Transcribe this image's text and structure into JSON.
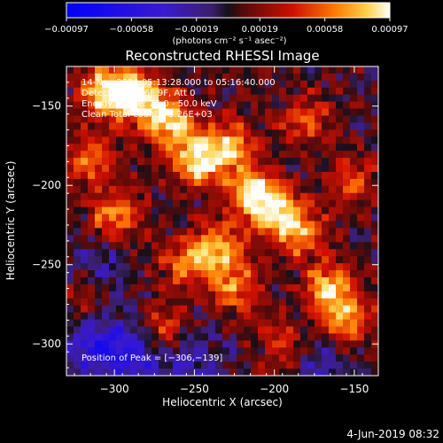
{
  "chart_data": {
    "type": "heatmap",
    "title": "Reconstructed RHESSI Image",
    "xlabel": "Heliocentric X (arcsec)",
    "ylabel": "Heliocentric Y (arcsec)",
    "xlim": [
      -330,
      -135
    ],
    "ylim": [
      -320,
      -125
    ],
    "x_ticks": [
      -300,
      -250,
      -200,
      -150
    ],
    "x_tick_labels": [
      "−300",
      "−250",
      "−200",
      "−150"
    ],
    "y_ticks": [
      -150,
      -200,
      -250,
      -300
    ],
    "y_tick_labels": [
      "−150",
      "−200",
      "−250",
      "−300"
    ],
    "colorbar": {
      "min": -0.00097,
      "max": 0.00097,
      "tick_values": [
        -0.00097,
        -0.00058,
        -0.00019,
        0.00019,
        0.00058,
        0.00097
      ],
      "tick_labels": [
        "−0.00097",
        "−0.00058",
        "−0.00019",
        "0.00019",
        "0.00058",
        "0.00097"
      ],
      "units_label": "(photons cm⁻² s⁻¹ asec⁻²)"
    },
    "annotations": [
      "14-Nov-2014 05:13:28.000 to 05:16:40.000",
      "Detectors: 3F 6F 9F, Att 0",
      "Energy Range: 25.0 - 50.0 keV",
      "Clean     Total counts: 3.26E+03"
    ],
    "peak_label": "Position of Peak = [−306,−139]",
    "peak": {
      "x": -306,
      "y": -139
    },
    "hotspots": [
      {
        "x": -305,
        "y": -140,
        "v": 0.00097
      },
      {
        "x": -285,
        "y": -145,
        "v": 0.0009
      },
      {
        "x": -265,
        "y": -160,
        "v": 0.00082
      },
      {
        "x": -248,
        "y": -185,
        "v": 0.00088
      },
      {
        "x": -228,
        "y": -175,
        "v": 0.00075
      },
      {
        "x": -215,
        "y": -205,
        "v": 0.00085
      },
      {
        "x": -200,
        "y": -215,
        "v": 0.00075
      },
      {
        "x": -185,
        "y": -230,
        "v": 0.0007
      },
      {
        "x": -165,
        "y": -265,
        "v": 0.00078
      },
      {
        "x": -155,
        "y": -285,
        "v": 0.00065
      },
      {
        "x": -235,
        "y": -240,
        "v": 0.0007
      },
      {
        "x": -255,
        "y": -250,
        "v": 0.0006
      },
      {
        "x": -225,
        "y": -265,
        "v": 0.00058
      },
      {
        "x": -270,
        "y": -290,
        "v": 0.00052
      },
      {
        "x": -300,
        "y": -220,
        "v": 0.00065
      },
      {
        "x": -315,
        "y": -185,
        "v": 0.0006
      },
      {
        "x": -180,
        "y": -160,
        "v": 0.0005
      },
      {
        "x": -150,
        "y": -200,
        "v": 0.00045
      },
      {
        "x": -195,
        "y": -300,
        "v": 0.0004
      },
      {
        "x": -320,
        "y": -270,
        "v": 0.0003
      }
    ],
    "coldspots": [
      {
        "x": -290,
        "y": -305,
        "v": -0.00058
      },
      {
        "x": -315,
        "y": -300,
        "v": -0.00045
      },
      {
        "x": -250,
        "y": -310,
        "v": -0.00035
      },
      {
        "x": -170,
        "y": -310,
        "v": -0.0003
      },
      {
        "x": -310,
        "y": -250,
        "v": -0.0003
      }
    ]
  },
  "footer": {
    "timestamp": "4-Jun-2019 08:32"
  }
}
